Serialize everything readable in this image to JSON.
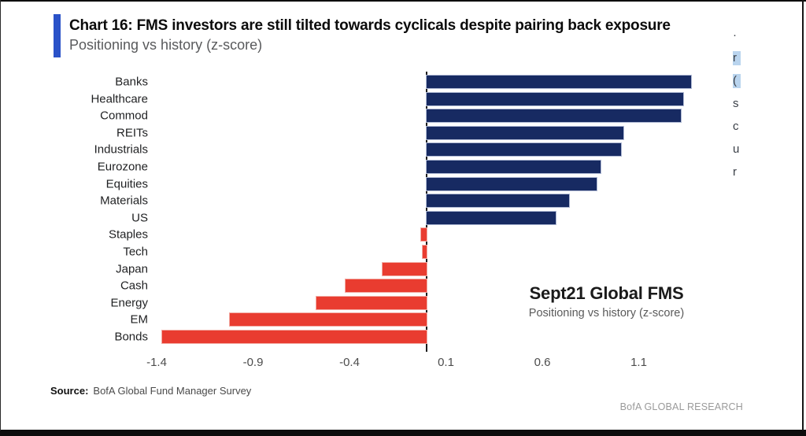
{
  "chart_data": {
    "type": "bar",
    "orientation": "horizontal",
    "title": "Chart 16: FMS investors are still tilted towards cyclicals despite pairing back exposure",
    "subtitle": "Positioning vs history (z-score)",
    "categories": [
      "Banks",
      "Healthcare",
      "Commod",
      "REITs",
      "Industrials",
      "Eurozone",
      "Equities",
      "Materials",
      "US",
      "Staples",
      "Tech",
      "Japan",
      "Cash",
      "Energy",
      "EM",
      "Bonds"
    ],
    "values": [
      1.37,
      1.33,
      1.32,
      1.02,
      1.01,
      0.9,
      0.88,
      0.74,
      0.67,
      -0.03,
      -0.02,
      -0.23,
      -0.42,
      -0.57,
      -1.02,
      -1.37
    ],
    "xlabel": "",
    "ylabel": "",
    "xlim": [
      -1.65,
      1.75
    ],
    "x_ticks": [
      {
        "label": "-1.4",
        "value": -1.4
      },
      {
        "label": "-0.9",
        "value": -0.9
      },
      {
        "label": "-0.4",
        "value": -0.4
      },
      {
        "label": "0.1",
        "value": 0.1
      },
      {
        "label": "0.6",
        "value": 0.6
      },
      {
        "label": "1.1",
        "value": 1.1
      }
    ],
    "grid": false,
    "legend": "none",
    "positive_color": "#172a62",
    "negative_color": "#e93c30",
    "accent_color": "#2a52c8",
    "annotation_title": "Sept21 Global FMS",
    "annotation_subtitle": "Positioning vs history (z-score)"
  },
  "footer": {
    "source_label": "Source:",
    "source_text": "BofA Global Fund Manager Survey",
    "brand": "BofA GLOBAL RESEARCH"
  },
  "edge_fragments": [
    {
      "glyph": "·",
      "highlighted": false
    },
    {
      "glyph": "r",
      "highlighted": true
    },
    {
      "glyph": "(",
      "highlighted": true
    },
    {
      "glyph": "s",
      "highlighted": false
    },
    {
      "glyph": "c",
      "highlighted": false
    },
    {
      "glyph": "u",
      "highlighted": false
    },
    {
      "glyph": "r",
      "highlighted": false
    }
  ]
}
